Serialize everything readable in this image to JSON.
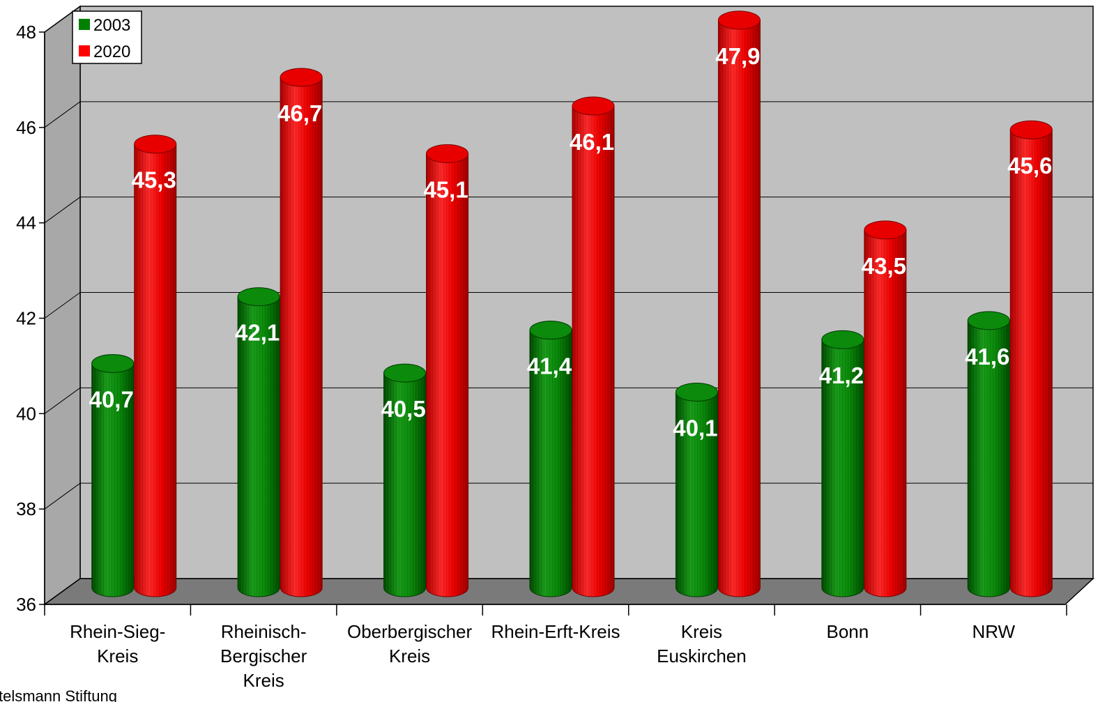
{
  "chart_data": {
    "type": "bar",
    "categories": [
      [
        "Rhein-Sieg-",
        "Kreis"
      ],
      [
        "Rheinisch-",
        "Bergischer",
        "Kreis"
      ],
      [
        "Oberbergischer",
        "Kreis"
      ],
      [
        "Rhein-Erft-Kreis"
      ],
      [
        "Kreis",
        "Euskirchen"
      ],
      [
        "Bonn"
      ],
      [
        "NRW"
      ]
    ],
    "series": [
      {
        "name": "2003",
        "color": "#008000",
        "values": [
          40.7,
          42.1,
          40.5,
          41.4,
          40.1,
          41.2,
          41.6
        ],
        "labels": [
          "40,7",
          "42,1",
          "40,5",
          "41,4",
          "40,1",
          "41,2",
          "41,6"
        ]
      },
      {
        "name": "2020",
        "color": "#ff0000",
        "values": [
          45.3,
          46.7,
          45.1,
          46.1,
          47.9,
          43.5,
          45.6
        ],
        "labels": [
          "45,3",
          "46,7",
          "45,1",
          "46,1",
          "47,9",
          "43,5",
          "45,6"
        ]
      }
    ],
    "y_ticks": [
      "36",
      "38",
      "40",
      "42",
      "44",
      "46",
      "48"
    ],
    "ylim": [
      36,
      48
    ],
    "grid": true,
    "legend_position": "top-left",
    "style": "3d-cylinder",
    "source_text": "telsmann Stiftung"
  }
}
